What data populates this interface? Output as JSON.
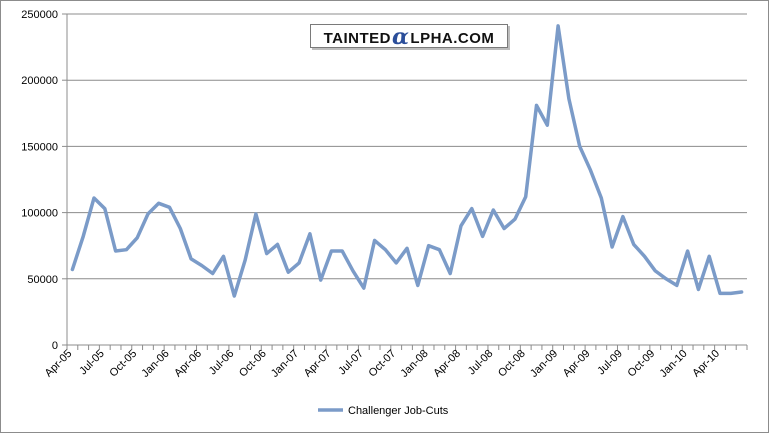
{
  "watermark": {
    "pre": "TAINTED",
    "alpha": "α",
    "post": "LPHA.COM"
  },
  "chart_data": {
    "type": "line",
    "title": "",
    "xlabel": "",
    "ylabel": "",
    "ylim": [
      0,
      250000
    ],
    "yticks": [
      "0",
      "50000",
      "100000",
      "150000",
      "200000",
      "250000"
    ],
    "xtick_labels": [
      "Apr-05",
      "Jul-05",
      "Oct-05",
      "Jan-06",
      "Apr-06",
      "Jul-06",
      "Oct-06",
      "Jan-07",
      "Apr-07",
      "Jul-07",
      "Oct-07",
      "Jan-08",
      "Apr-08",
      "Jul-08",
      "Oct-08",
      "Jan-09",
      "Apr-09",
      "Jul-09",
      "Oct-09",
      "Jan-10",
      "Apr-10"
    ],
    "grid": "horizontal",
    "legend": "bottom",
    "series": [
      {
        "name": "Challenger Job-Cuts",
        "color": "#7b9bc8",
        "values": [
          57000,
          82000,
          111000,
          103000,
          71000,
          72000,
          81000,
          99000,
          107000,
          104000,
          88000,
          65000,
          60000,
          54000,
          67000,
          37000,
          64000,
          99000,
          69000,
          76000,
          55000,
          62000,
          84000,
          49000,
          71000,
          71000,
          56000,
          43000,
          79000,
          72000,
          62000,
          73000,
          45000,
          75000,
          72000,
          54000,
          90000,
          103000,
          82000,
          102000,
          88000,
          95000,
          112000,
          181000,
          166000,
          241000,
          186000,
          150000,
          132000,
          111000,
          74000,
          97000,
          76000,
          67000,
          56000,
          50000,
          45000,
          71000,
          42000,
          67000,
          39000,
          39000,
          40000
        ]
      }
    ]
  }
}
